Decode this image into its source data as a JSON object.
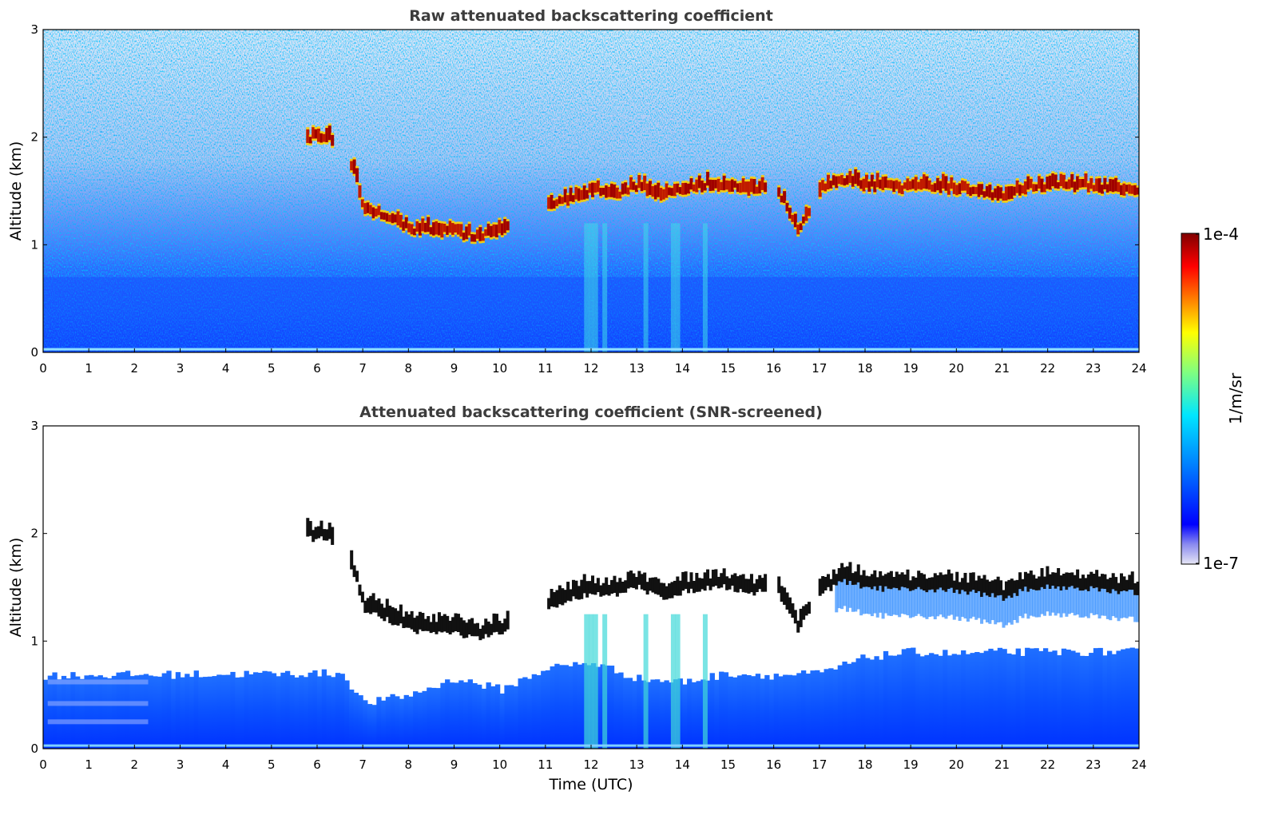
{
  "chart_data": [
    {
      "type": "heatmap",
      "title": "Raw attenuated backscattering coefficient",
      "xlabel": "",
      "ylabel": "Altitude (km)",
      "xlim": [
        0,
        24
      ],
      "ylim": [
        0,
        3
      ],
      "x_ticks": [
        "0",
        "1",
        "2",
        "3",
        "4",
        "5",
        "6",
        "7",
        "8",
        "9",
        "10",
        "11",
        "12",
        "13",
        "14",
        "15",
        "16",
        "17",
        "18",
        "19",
        "20",
        "21",
        "22",
        "23",
        "24"
      ],
      "y_ticks": [
        "0",
        "1",
        "2",
        "3"
      ],
      "cloud_layer_km": [
        [
          5.8,
          1.95
        ],
        [
          6.2,
          1.95
        ],
        [
          6.8,
          1.6
        ],
        [
          7,
          1.28
        ],
        [
          7.5,
          1.2
        ],
        [
          8,
          1.1
        ],
        [
          8.5,
          1.08
        ],
        [
          9,
          1.07
        ],
        [
          9.5,
          1.02
        ],
        [
          10,
          1.07
        ],
        [
          11,
          1.28
        ],
        [
          11.5,
          1.38
        ],
        [
          12,
          1.45
        ],
        [
          12.5,
          1.42
        ],
        [
          13,
          1.5
        ],
        [
          13.5,
          1.4
        ],
        [
          14,
          1.45
        ],
        [
          14.5,
          1.5
        ],
        [
          15,
          1.5
        ],
        [
          15.5,
          1.44
        ],
        [
          16,
          1.5
        ],
        [
          16.5,
          1.1
        ],
        [
          17,
          1.45
        ],
        [
          17.5,
          1.55
        ],
        [
          18,
          1.5
        ],
        [
          18.5,
          1.48
        ],
        [
          19,
          1.47
        ],
        [
          19.5,
          1.48
        ],
        [
          20,
          1.47
        ],
        [
          20.5,
          1.44
        ],
        [
          21,
          1.4
        ],
        [
          21.5,
          1.48
        ],
        [
          22,
          1.5
        ],
        [
          22.5,
          1.5
        ],
        [
          23,
          1.48
        ],
        [
          23.5,
          1.45
        ],
        [
          23.9,
          1.45
        ]
      ]
    },
    {
      "type": "heatmap",
      "title": "Attenuated backscattering coefficient (SNR-screened)",
      "xlabel": "Time (UTC)",
      "ylabel": "Altitude (km)",
      "xlim": [
        0,
        24
      ],
      "ylim": [
        0,
        3
      ],
      "x_ticks": [
        "0",
        "1",
        "2",
        "3",
        "4",
        "5",
        "6",
        "7",
        "8",
        "9",
        "10",
        "11",
        "12",
        "13",
        "14",
        "15",
        "16",
        "17",
        "18",
        "19",
        "20",
        "21",
        "22",
        "23",
        "24"
      ],
      "y_ticks": [
        "0",
        "1",
        "2",
        "3"
      ],
      "boundary_layer_top_km": [
        [
          0,
          0.68
        ],
        [
          6.5,
          0.7
        ],
        [
          7,
          0.42
        ],
        [
          8,
          0.5
        ],
        [
          9,
          0.65
        ],
        [
          10,
          0.55
        ],
        [
          11,
          0.75
        ],
        [
          12,
          0.8
        ],
        [
          13,
          0.65
        ],
        [
          14,
          0.62
        ],
        [
          15,
          0.7
        ],
        [
          16,
          0.68
        ],
        [
          17,
          0.7
        ],
        [
          18,
          0.85
        ],
        [
          19,
          0.9
        ],
        [
          20,
          0.88
        ],
        [
          21,
          0.9
        ],
        [
          22,
          0.9
        ],
        [
          23,
          0.9
        ],
        [
          24,
          0.9
        ]
      ]
    }
  ],
  "colorbar": {
    "label": "1/m/sr",
    "max_label": "1e-4",
    "min_label": "1e-7",
    "scale": "log",
    "colormap": "jet",
    "colors": [
      "#e6e6f5",
      "#0000ff",
      "#0080ff",
      "#00ffff",
      "#80ff80",
      "#ffff00",
      "#ff8000",
      "#ff0000",
      "#800000"
    ]
  }
}
